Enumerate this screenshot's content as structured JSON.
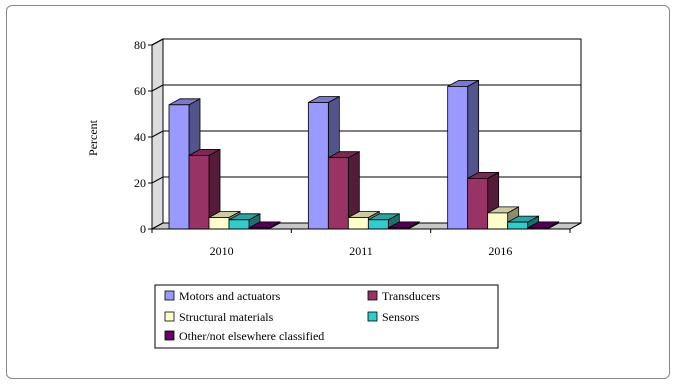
{
  "chart_data": {
    "type": "bar",
    "title": "",
    "xlabel": "",
    "ylabel": "Percent",
    "ylim": [
      0,
      80
    ],
    "yticks": [
      0,
      20,
      40,
      60,
      80
    ],
    "categories": [
      "2010",
      "2011",
      "2016"
    ],
    "grid": true,
    "legend_position": "bottom",
    "series": [
      {
        "name": "Motors and actuators",
        "color": "#9999ff",
        "values": [
          54,
          55,
          62
        ]
      },
      {
        "name": "Transducers",
        "color": "#993366",
        "values": [
          32,
          31,
          22
        ]
      },
      {
        "name": "Structural materials",
        "color": "#ffffcc",
        "values": [
          5,
          5,
          7
        ]
      },
      {
        "name": "Sensors",
        "color": "#33cccc",
        "values": [
          4,
          4,
          3
        ]
      },
      {
        "name": "Other/not elsewhere classified",
        "color": "#660066",
        "values": [
          0.5,
          0.5,
          0.5
        ]
      }
    ]
  }
}
